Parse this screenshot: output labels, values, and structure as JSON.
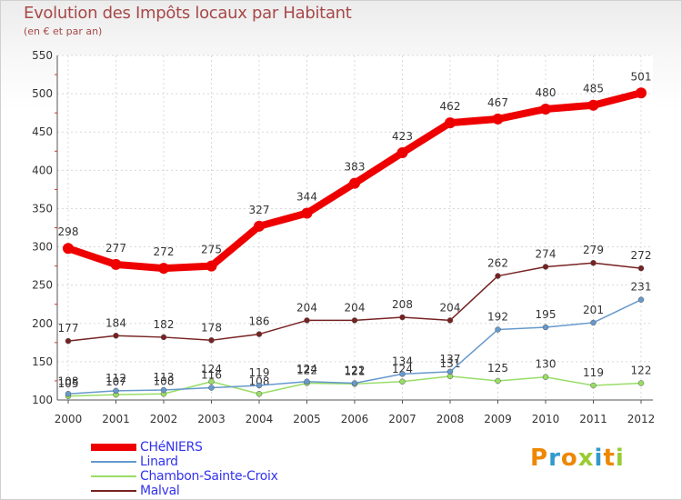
{
  "chart_data": {
    "type": "line",
    "title": "Evolution des Impôts locaux par Habitant",
    "subtitle": "(en € et par an)",
    "xlabel": "",
    "ylabel": "",
    "ylim": [
      100,
      550
    ],
    "yticks": [
      100,
      150,
      200,
      250,
      300,
      350,
      400,
      450,
      500,
      550
    ],
    "categories": [
      "2000",
      "2001",
      "2002",
      "2003",
      "2004",
      "2005",
      "2006",
      "2007",
      "2008",
      "2009",
      "2010",
      "2011",
      "2012"
    ],
    "series": [
      {
        "name": "CHéNIERS",
        "color": "#ee0000",
        "values": [
          298,
          277,
          272,
          275,
          327,
          344,
          383,
          423,
          462,
          467,
          480,
          485,
          501
        ]
      },
      {
        "name": "Linard",
        "color": "#6699cc",
        "values": [
          108,
          112,
          113,
          116,
          119,
          124,
          122,
          134,
          137,
          192,
          195,
          201,
          231
        ]
      },
      {
        "name": "Chambon-Sainte-Croix",
        "color": "#99dd66",
        "values": [
          105,
          107,
          108,
          124,
          108,
          122,
          121,
          124,
          131,
          125,
          130,
          119,
          122
        ]
      },
      {
        "name": "Malval",
        "color": "#772222",
        "values": [
          177,
          184,
          182,
          178,
          186,
          204,
          204,
          208,
          204,
          262,
          274,
          279,
          272
        ]
      }
    ]
  },
  "logo": {
    "text": "Proxiti",
    "colors": [
      "#ee8800",
      "#3399cc",
      "#ee8800",
      "#99cc33",
      "#3399cc",
      "#ee8800",
      "#99cc33"
    ]
  }
}
